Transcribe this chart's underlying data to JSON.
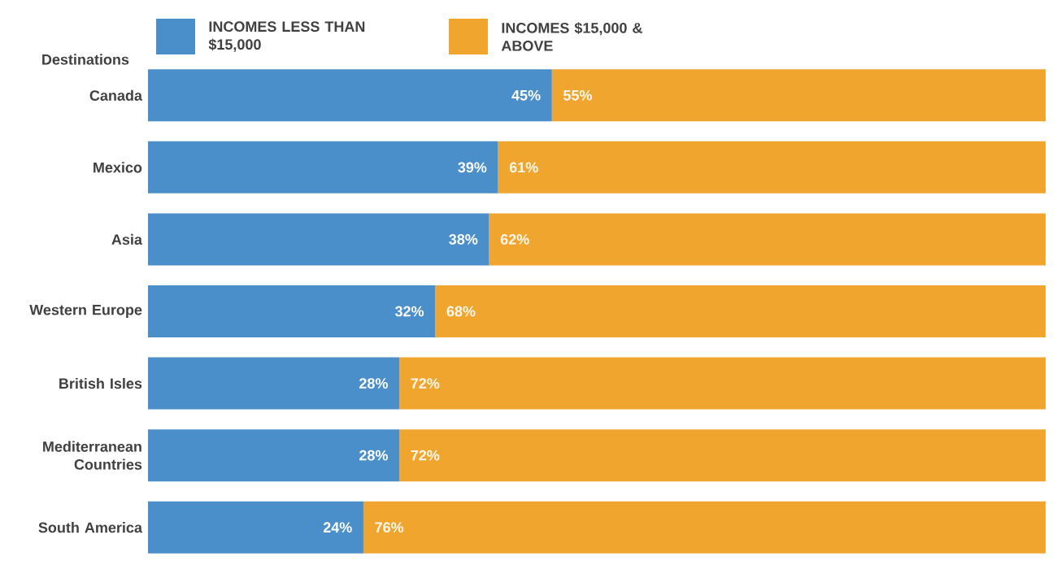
{
  "chart_data": {
    "type": "bar",
    "orientation": "horizontal",
    "stacked": true,
    "ylabel": "Destinations",
    "categories": [
      "Canada",
      "Mexico",
      "Asia",
      "Western Europe",
      "British Isles",
      "Mediterranean Countries",
      "South America"
    ],
    "series": [
      {
        "name": "INCOMES LESS THAN $15,000",
        "color": "#4b8fca",
        "values": [
          45,
          39,
          38,
          32,
          28,
          28,
          24
        ],
        "value_labels": [
          "45%",
          "39%",
          "38%",
          "32%",
          "28%",
          "28%",
          "24%"
        ]
      },
      {
        "name": "INCOMES $15,000 & ABOVE",
        "color": "#f0a62e",
        "values": [
          55,
          61,
          62,
          68,
          72,
          72,
          76
        ],
        "value_labels": [
          "55%",
          "61%",
          "62%",
          "68%",
          "72%",
          "72%",
          "76%"
        ]
      }
    ],
    "xlim": [
      0,
      100
    ],
    "tick_labels": "y",
    "legend": "top left",
    "grid": false
  }
}
